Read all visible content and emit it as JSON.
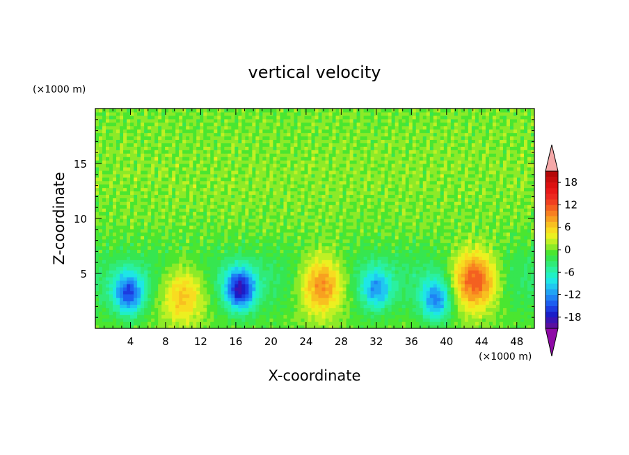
{
  "chart_data": {
    "type": "heatmap",
    "title": "vertical velocity",
    "xlabel": "X-coordinate",
    "ylabel": "Z-coordinate",
    "x_unit": "(×1000 m)",
    "y_unit": "(×1000 m)",
    "xlim": [
      0,
      50
    ],
    "ylim": [
      0,
      20
    ],
    "x_ticks": [
      "4",
      "8",
      "12",
      "16",
      "20",
      "24",
      "28",
      "32",
      "36",
      "40",
      "44",
      "48"
    ],
    "y_ticks": [
      "5",
      "10",
      "15"
    ],
    "colorbar": {
      "levels": [
        -21,
        -19.5,
        -18,
        -16.5,
        -15,
        -13.5,
        -12,
        -10.5,
        -9,
        -7.5,
        -6,
        -4.5,
        -3,
        -1.5,
        0,
        1.5,
        3,
        4.5,
        6,
        7.5,
        9,
        10.5,
        12,
        13.5,
        15,
        16.5,
        18,
        19.5,
        21
      ],
      "tick_labels": [
        "18",
        "12",
        "6",
        "0",
        "-6",
        "-12",
        "-18"
      ],
      "tick_values": [
        18,
        12,
        6,
        0,
        -6,
        -12,
        -18
      ],
      "extend": "both",
      "low_color": "#8e0aa6",
      "high_color": "#f5a8a8",
      "colors": [
        "#5a0fa0",
        "#3a14b4",
        "#1a1ec8",
        "#1c3ce0",
        "#1c5ef0",
        "#1e82f4",
        "#20a4f4",
        "#20c8f0",
        "#1ee6e6",
        "#20f0c4",
        "#2af0a0",
        "#30ea78",
        "#36e650",
        "#4ae630",
        "#8cea28",
        "#c0f024",
        "#ecf020",
        "#f8dc20",
        "#f8c020",
        "#f8a020",
        "#f88020",
        "#f46020",
        "#f04020",
        "#ec2820",
        "#e81818",
        "#dc1010",
        "#c80c0c",
        "#b40808"
      ]
    },
    "features": [
      {
        "x": 3.8,
        "z": 3.2,
        "w": -13,
        "note": "downdraft"
      },
      {
        "x": 10.0,
        "z": 3.2,
        "w": 9,
        "note": "updraft"
      },
      {
        "x": 16.5,
        "z": 3.6,
        "w": -16,
        "note": "downdraft"
      },
      {
        "x": 25.8,
        "z": 4.0,
        "w": 12,
        "note": "updraft"
      },
      {
        "x": 32.0,
        "z": 3.6,
        "w": -9,
        "note": "downdraft"
      },
      {
        "x": 38.8,
        "z": 2.6,
        "w": -11,
        "note": "downdraft"
      },
      {
        "x": 43.2,
        "z": 4.4,
        "w": 15,
        "note": "updraft"
      }
    ]
  }
}
